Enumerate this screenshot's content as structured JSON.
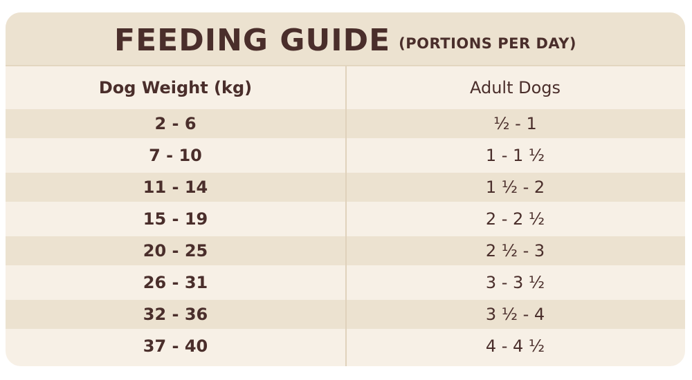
{
  "header": {
    "title": "FEEDING GUIDE",
    "subtitle": "(PORTIONS PER DAY)"
  },
  "columns": {
    "weight": "Dog Weight (kg)",
    "adult": "Adult Dogs"
  },
  "rows": [
    {
      "weight": "2 - 6",
      "portion": "½ - 1"
    },
    {
      "weight": "7 - 10",
      "portion": "1 - 1 ½"
    },
    {
      "weight": "11 - 14",
      "portion": "1 ½ - 2"
    },
    {
      "weight": "15 - 19",
      "portion": "2 - 2 ½"
    },
    {
      "weight": "20 - 25",
      "portion": "2 ½ - 3"
    },
    {
      "weight": "26 - 31",
      "portion": "3 - 3 ½"
    },
    {
      "weight": "32 - 36",
      "portion": "3 ½ - 4"
    },
    {
      "weight": "37 - 40",
      "portion": "4 - 4 ½"
    }
  ],
  "colors": {
    "text": "#4a2e2b",
    "card_background": "#f7f0e6",
    "band_background": "#ece2d0"
  }
}
